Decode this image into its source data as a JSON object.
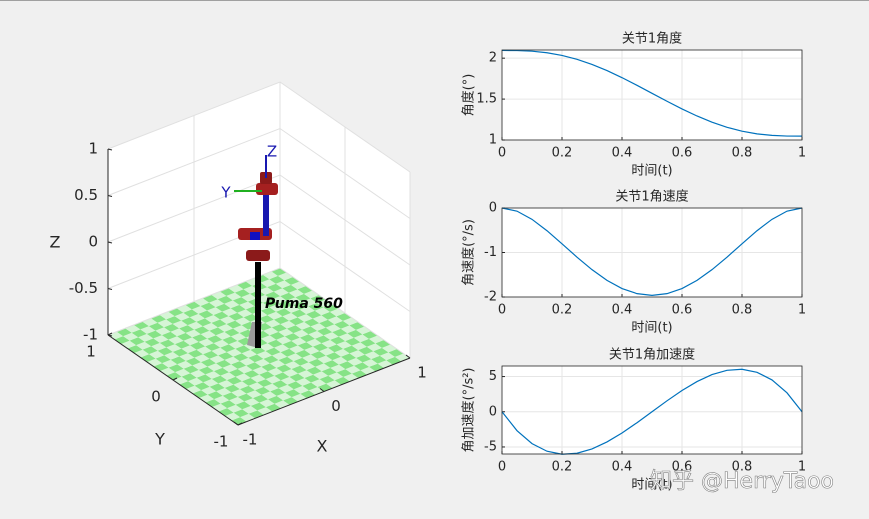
{
  "chart_data": [
    {
      "type": "robot3d",
      "robot_name": "Puma 560",
      "frame_labels": [
        "Z",
        "Y"
      ],
      "xlabel": "X",
      "ylabel": "Y",
      "zlabel": "Z",
      "xlim": [
        -1,
        1
      ],
      "ylim": [
        -1,
        1
      ],
      "zlim": [
        -1,
        1
      ],
      "xticks": [
        -1,
        0,
        1
      ],
      "yticks": [
        -1,
        0,
        1
      ],
      "zticks": [
        -1,
        -0.5,
        0,
        0.5,
        1
      ],
      "grid": true
    },
    {
      "type": "line",
      "title": "关节1角度",
      "xlabel": "时间(t)",
      "ylabel": "角度(°)",
      "x": [
        0,
        0.05,
        0.1,
        0.15,
        0.2,
        0.25,
        0.3,
        0.35,
        0.4,
        0.45,
        0.5,
        0.55,
        0.6,
        0.65,
        0.7,
        0.75,
        0.8,
        0.85,
        0.9,
        0.95,
        1
      ],
      "series": [
        {
          "color": "#0072bd",
          "values": [
            2.0944,
            2.0932,
            2.0854,
            2.0665,
            2.0337,
            1.986,
            1.9236,
            1.8481,
            1.762,
            1.6683,
            1.5708,
            1.4733,
            1.3796,
            1.2935,
            1.218,
            1.1556,
            1.1079,
            1.0751,
            1.0562,
            1.0484,
            1.0472
          ]
        }
      ],
      "xlim": [
        0,
        1
      ],
      "ylim": [
        1,
        2.1
      ],
      "xticks": [
        0,
        0.2,
        0.4,
        0.6,
        0.8,
        1
      ],
      "yticks": [
        1,
        1.5,
        2
      ],
      "grid": true
    },
    {
      "type": "line",
      "title": "关节1角速度",
      "xlabel": "时间(t)",
      "ylabel": "角速度(°/s)",
      "x": [
        0,
        0.05,
        0.1,
        0.15,
        0.2,
        0.25,
        0.3,
        0.35,
        0.4,
        0.45,
        0.5,
        0.55,
        0.6,
        0.65,
        0.7,
        0.75,
        0.8,
        0.85,
        0.9,
        0.95,
        1
      ],
      "series": [
        {
          "color": "#0072bd",
          "values": [
            0,
            -0.0709,
            -0.2545,
            -0.5107,
            -0.8042,
            -1.1045,
            -1.3854,
            -1.626,
            -1.8096,
            -1.9245,
            -1.9635,
            -1.9245,
            -1.8096,
            -1.626,
            -1.3854,
            -1.1045,
            -0.8042,
            -0.5107,
            -0.2545,
            -0.0709,
            0
          ]
        }
      ],
      "xlim": [
        0,
        1
      ],
      "ylim": [
        -2,
        0
      ],
      "xticks": [
        0,
        0.2,
        0.4,
        0.6,
        0.8,
        1
      ],
      "yticks": [
        -2,
        -1,
        0
      ],
      "grid": true
    },
    {
      "type": "line",
      "title": "关节1角加速度",
      "xlabel": "时间(t)",
      "ylabel": "角加速度(°/s²)",
      "x": [
        0,
        0.05,
        0.1,
        0.15,
        0.2,
        0.25,
        0.3,
        0.35,
        0.4,
        0.45,
        0.5,
        0.55,
        0.6,
        0.65,
        0.7,
        0.75,
        0.8,
        0.85,
        0.9,
        0.95,
        1
      ],
      "series": [
        {
          "color": "#0072bd",
          "values": [
            0,
            -2.686,
            -4.524,
            -5.608,
            -6.032,
            -5.89,
            -5.278,
            -4.288,
            -3.016,
            -1.555,
            0,
            1.555,
            3.016,
            4.288,
            5.278,
            5.89,
            6.032,
            5.608,
            4.524,
            2.686,
            0
          ]
        }
      ],
      "xlim": [
        0,
        1
      ],
      "ylim": [
        -6,
        6.5
      ],
      "xticks": [
        0,
        0.2,
        0.4,
        0.6,
        0.8,
        1
      ],
      "yticks": [
        -5,
        0,
        5
      ],
      "grid": true
    }
  ],
  "watermark": "知乎 @HerryTaoo"
}
